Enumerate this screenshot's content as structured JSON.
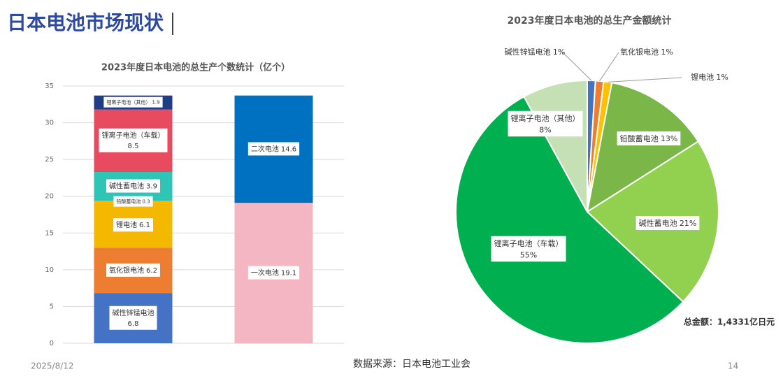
{
  "header": {
    "title": "日本电池市场现状"
  },
  "footer": {
    "date": "2025/8/12",
    "source": "数据来源：日本电池工业会",
    "page": "14"
  },
  "chart_data": [
    {
      "type": "stacked-bar",
      "title": "2023年度日本电池的总生产个数统计（亿个）",
      "categories": [
        null,
        null
      ],
      "ylim": [
        0,
        35
      ],
      "yticks": [
        0,
        5,
        10,
        15,
        20,
        25,
        30,
        35
      ],
      "grid": true,
      "series": [
        {
          "name": "碱性锌锰电池",
          "color": "#4472c4",
          "values": [
            6.8,
            null
          ]
        },
        {
          "name": "氧化银电池",
          "color": "#ed7d31",
          "values": [
            6.2,
            null
          ]
        },
        {
          "name": "锂电池",
          "color": "#f5b800",
          "values": [
            6.1,
            null
          ]
        },
        {
          "name": "铅酸蓄电池",
          "color": "#f5b800",
          "values": [
            0.3,
            null
          ]
        },
        {
          "name": "碱性蓄电池",
          "color": "#2ec4b6",
          "values": [
            3.9,
            null
          ]
        },
        {
          "name": "锂离子电池（车载）",
          "color": "#e84a5f",
          "values": [
            8.5,
            null
          ]
        },
        {
          "name": "锂离子电池（其他）",
          "color": "#1f3c88",
          "values": [
            1.9,
            null
          ]
        },
        {
          "name": "一次电池",
          "color": "#f4b6c2",
          "values": [
            null,
            19.1
          ]
        },
        {
          "name": "二次电池",
          "color": "#0070c0",
          "values": [
            null,
            14.6
          ]
        }
      ]
    },
    {
      "type": "pie",
      "title": "2023年度日本电池的总生产金额统计",
      "categories": [
        "碱性锌锰电池",
        "氧化银电池",
        "锂电池",
        "铅酸蓄电池",
        "碱性蓄电池",
        "锂离子电池（车载）",
        "锂离子电池（其他）"
      ],
      "values": [
        1,
        1,
        1,
        13,
        21,
        55,
        8
      ],
      "value_labels": [
        "1%",
        "1%",
        "1%",
        "13%",
        "21%",
        "55%",
        "8%"
      ],
      "colors": [
        "#4472c4",
        "#ed7d31",
        "#ffc000",
        "#7ab648",
        "#92d050",
        "#00b050",
        "#c5e0b4"
      ],
      "annotation": "总金额：1,4331亿日元"
    }
  ]
}
